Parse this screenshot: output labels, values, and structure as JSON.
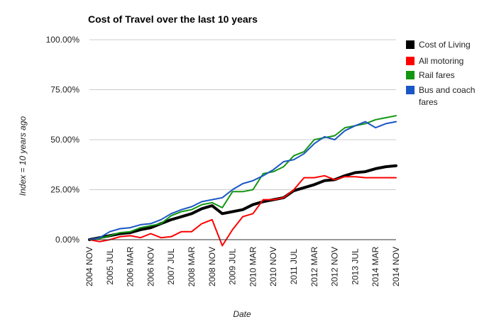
{
  "chart_data": {
    "type": "line",
    "title": "Cost of Travel over the last 10 years",
    "xlabel": "Date",
    "ylabel": "Index = 10 years ago",
    "x_tick_labels": [
      "2004 NOV",
      "2005 MAR",
      "2005 JUL",
      "2005 NOV",
      "2006 MAR",
      "2006 JUL",
      "2006 NOV",
      "2007 MAR",
      "2007 JUL",
      "2007 NOV",
      "2008 MAR",
      "2008 JUL",
      "2008 NOV",
      "2009 MAR",
      "2009 JUL",
      "2009 NOV",
      "2010 MAR",
      "2010 JUL",
      "2010 NOV",
      "2011 MAR",
      "2011 JUL",
      "2011 NOV",
      "2012 MAR",
      "2012 JUL",
      "2012 NOV",
      "2013 MAR",
      "2013 JUL",
      "2013 NOV",
      "2014 MAR",
      "2014 JUL",
      "2014 NOV"
    ],
    "y_tick_labels": [
      "0.00%",
      "25.00%",
      "50.00%",
      "75.00%",
      "100.00%"
    ],
    "ylim": [
      0,
      100
    ],
    "grid": true,
    "legend_position": "right",
    "series": [
      {
        "name": "Cost of Living",
        "color": "#000000",
        "values": [
          0,
          1,
          2,
          3,
          3.5,
          5,
          6,
          8,
          10,
          11.5,
          13,
          15.5,
          17,
          13,
          14,
          15,
          17.5,
          19,
          20,
          21,
          24.5,
          26,
          27.5,
          29.5,
          30,
          32,
          33.5,
          34,
          35.5,
          36.5,
          37
        ]
      },
      {
        "name": "All motoring",
        "color": "#ff0000",
        "values": [
          0,
          -1,
          0,
          1.5,
          2,
          1,
          3,
          1,
          1.5,
          4,
          4,
          8,
          10,
          -3,
          5,
          11.5,
          13,
          20,
          20,
          21,
          25,
          31,
          31,
          32,
          30,
          31.5,
          31.5,
          31,
          31,
          31,
          31
        ]
      },
      {
        "name": "Rail fares",
        "color": "#129612",
        "values": [
          0,
          0.5,
          2,
          3.5,
          4,
          6,
          7,
          8,
          12,
          14,
          15,
          17.5,
          18.5,
          16,
          24,
          24,
          25,
          33,
          34,
          36.5,
          42,
          44,
          50,
          51,
          52,
          56,
          57,
          58,
          60,
          61,
          62
        ]
      },
      {
        "name": "Bus and coach fares",
        "color": "#1a56c4",
        "values": [
          0,
          1,
          4,
          5.5,
          6,
          7.5,
          8,
          10,
          13,
          15,
          16.5,
          19,
          20,
          21,
          25,
          28,
          29.5,
          32,
          35,
          39,
          40,
          43,
          48,
          51.5,
          50,
          54.5,
          57,
          59,
          56,
          58,
          59
        ]
      }
    ]
  }
}
